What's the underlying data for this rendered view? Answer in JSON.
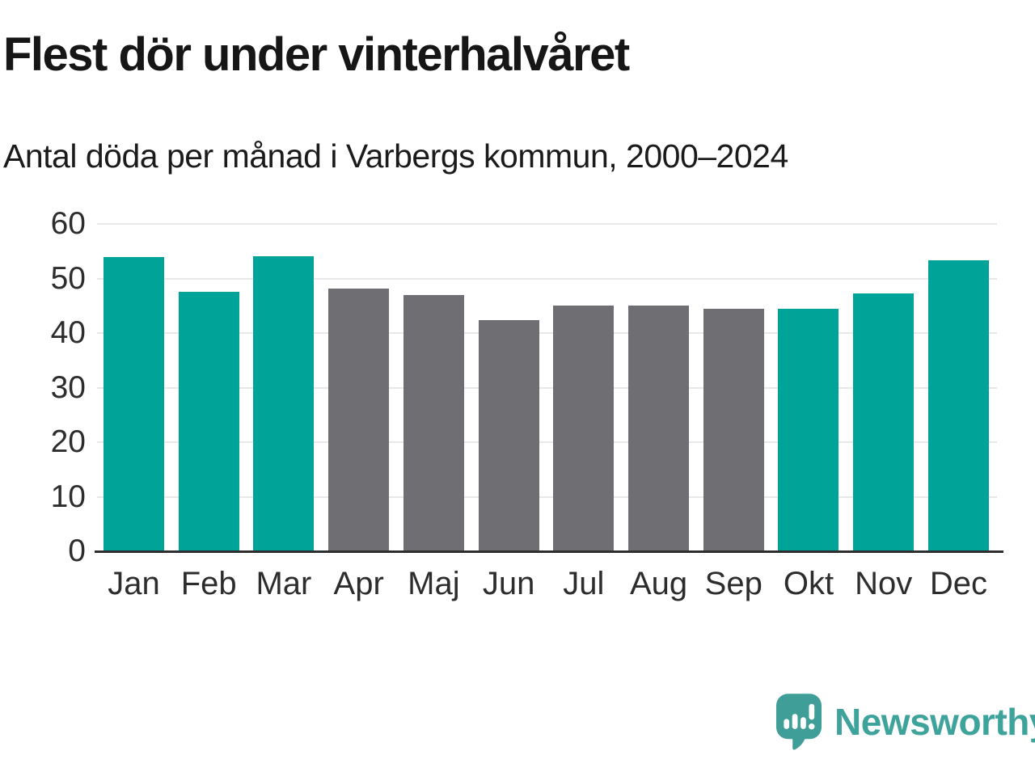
{
  "header": {
    "title": "Flest dör under vinterhalvåret",
    "subtitle": "Antal döda per månad i Varbergs kommun, 2000–2024"
  },
  "chart_data": {
    "type": "bar",
    "title": "Flest dör under vinterhalvåret",
    "subtitle": "Antal döda per månad i Varbergs kommun, 2000–2024",
    "categories": [
      "Jan",
      "Feb",
      "Mar",
      "Apr",
      "Maj",
      "Jun",
      "Jul",
      "Aug",
      "Sep",
      "Okt",
      "Nov",
      "Dec"
    ],
    "values": [
      54.0,
      47.5,
      54.1,
      48.2,
      46.9,
      42.3,
      45.0,
      45.0,
      44.4,
      44.4,
      47.2,
      53.4
    ],
    "bar_groups": [
      "winter",
      "winter",
      "winter",
      "summer",
      "summer",
      "summer",
      "summer",
      "summer",
      "summer",
      "winter",
      "winter",
      "winter"
    ],
    "xlabel": "",
    "ylabel": "",
    "ylim": [
      0,
      60
    ],
    "yticks": [
      0,
      10,
      20,
      30,
      40,
      50,
      60
    ],
    "grid": true,
    "legend_position": "none",
    "colors": {
      "winter": "#00a398",
      "summer": "#6e6e73",
      "gridline": "#e8e8e8",
      "axis_line": "#2e2e2e",
      "tick_text": "#2d2d2d"
    }
  },
  "branding": {
    "wordmark": "Newsworthy",
    "brand_color": "#3ea39a",
    "icons": {
      "logo": "newsworthy-speech-bubble-bar-chart-icon"
    }
  }
}
